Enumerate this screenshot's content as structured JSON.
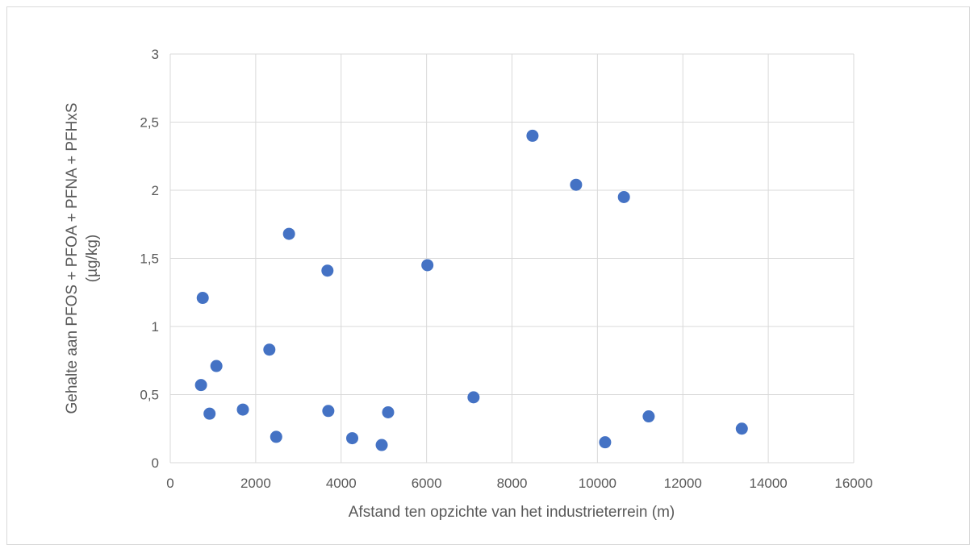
{
  "chart_data": {
    "type": "scatter",
    "title": "",
    "xlabel": "Afstand ten opzichte van het industrieterrein (m)",
    "ylabel_lines": [
      "Gehalte aan PFOS + PFOA + PFNA + PFHxS",
      "(µg/kg)"
    ],
    "xlim": [
      0,
      16000
    ],
    "ylim": [
      0,
      3
    ],
    "x_ticks": [
      0,
      2000,
      4000,
      6000,
      8000,
      10000,
      12000,
      14000,
      16000
    ],
    "x_tick_labels": [
      "0",
      "2000",
      "4000",
      "6000",
      "8000",
      "10000",
      "12000",
      "14000",
      "16000"
    ],
    "y_ticks": [
      0,
      0.5,
      1,
      1.5,
      2,
      2.5,
      3
    ],
    "y_tick_labels": [
      "0",
      "0,5",
      "1",
      "1,5",
      "2",
      "2,5",
      "3"
    ],
    "grid": true,
    "legend": "none",
    "marker_color": "#4472c4",
    "points": [
      {
        "x": 720,
        "y": 0.57
      },
      {
        "x": 760,
        "y": 1.21
      },
      {
        "x": 920,
        "y": 0.36
      },
      {
        "x": 1080,
        "y": 0.71
      },
      {
        "x": 1700,
        "y": 0.39
      },
      {
        "x": 2320,
        "y": 0.83
      },
      {
        "x": 2480,
        "y": 0.19
      },
      {
        "x": 2780,
        "y": 1.68
      },
      {
        "x": 3680,
        "y": 1.41
      },
      {
        "x": 3700,
        "y": 0.38
      },
      {
        "x": 4260,
        "y": 0.18
      },
      {
        "x": 4950,
        "y": 0.13
      },
      {
        "x": 5100,
        "y": 0.37
      },
      {
        "x": 6020,
        "y": 1.45
      },
      {
        "x": 7100,
        "y": 0.48
      },
      {
        "x": 8480,
        "y": 2.4
      },
      {
        "x": 9500,
        "y": 2.04
      },
      {
        "x": 10180,
        "y": 0.15
      },
      {
        "x": 10620,
        "y": 1.95
      },
      {
        "x": 11200,
        "y": 0.34
      },
      {
        "x": 13380,
        "y": 0.25
      }
    ]
  }
}
